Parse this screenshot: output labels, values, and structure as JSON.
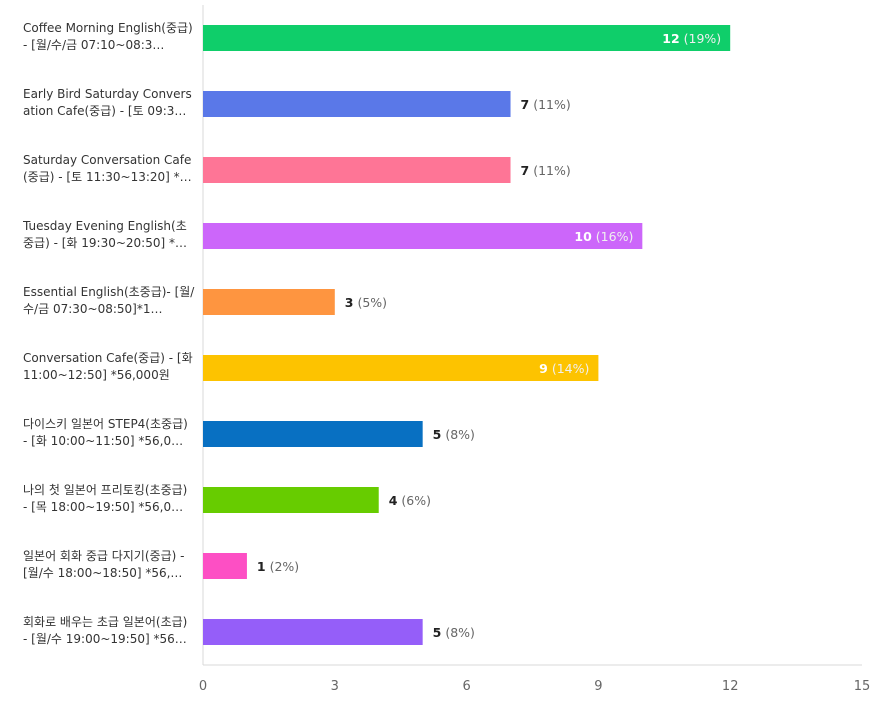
{
  "chart_data": {
    "type": "bar",
    "orientation": "horizontal",
    "categories": [
      "Coffee Morning English(중급) - [월/수/금 07:10~08:3…",
      "Early Bird Saturday Conversation Cafe(중급) - [토 09:3…",
      "Saturday Conversation Cafe (중급) - [토 11:30~13:20] *…",
      "Tuesday Evening English(초중급) - [화 19:30~20:50] *…",
      "Essential English(초중급)- [월/수/금 07:30~08:50]*1…",
      "Conversation Cafe(중급) - [화 11:00~12:50] *56,000원",
      "다이스키 일본어 STEP4(초중급) - [화 10:00~11:50] *56,0…",
      "나의 첫 일본어 프리토킹(초중급) - [목 18:00~19:50] *56,0…",
      "일본어 회화 중급 다지기(중급) - [월/수 18:00~18:50] *56,…",
      "회화로 배우는 초급 일본어(초급) - [월/수 19:00~19:50] *56…"
    ],
    "values": [
      12,
      7,
      7,
      10,
      3,
      9,
      5,
      4,
      1,
      5
    ],
    "percent_labels": [
      "(19%)",
      "(11%)",
      "(11%)",
      "(16%)",
      "(5%)",
      "(14%)",
      "(8%)",
      "(6%)",
      "(2%)",
      "(8%)"
    ],
    "colors": [
      "#0fce6a",
      "#5a78e8",
      "#fe7596",
      "#cc66fa",
      "#fe9540",
      "#fdc300",
      "#0870c2",
      "#67cc00",
      "#fd4fc4",
      "#955ef9"
    ],
    "label_inside": [
      true,
      false,
      false,
      true,
      false,
      true,
      false,
      false,
      false,
      false
    ],
    "xlim": [
      0,
      15
    ],
    "xticks": [
      "0",
      "3",
      "6",
      "9",
      "12",
      "15"
    ],
    "grid": false,
    "legend": "none",
    "title": "",
    "xlabel": "",
    "ylabel": ""
  }
}
